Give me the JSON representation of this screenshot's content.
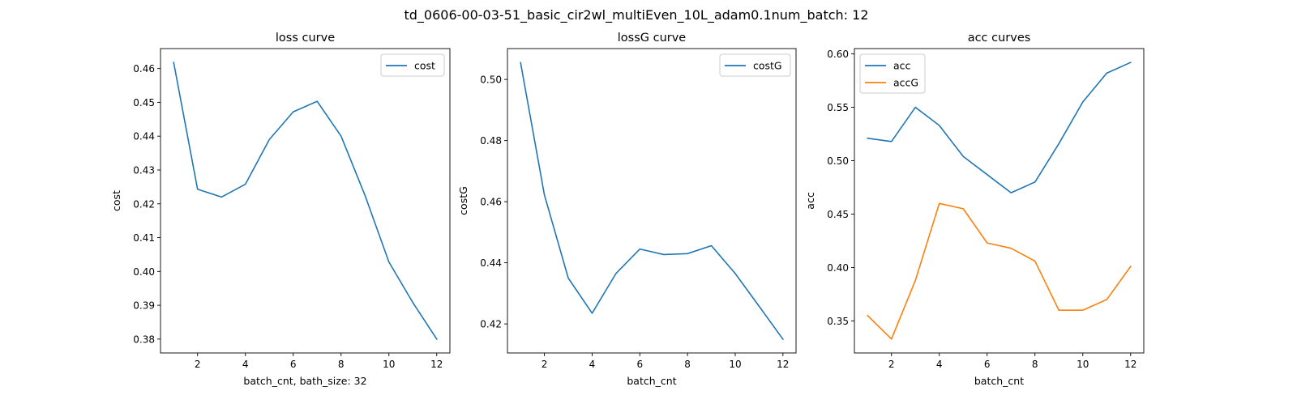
{
  "figure": {
    "suptitle": "td_0606-00-03-51_basic_cir2wl_multiEven_10L_adam0.1num_batch: 12"
  },
  "chart_data": [
    {
      "type": "line",
      "title": "loss curve",
      "xlabel": "batch_cnt, bath_size: 32",
      "ylabel": "cost",
      "x": [
        1,
        2,
        3,
        4,
        5,
        6,
        7,
        8,
        9,
        10,
        11,
        12
      ],
      "series": [
        {
          "name": "cost",
          "color": "#1f77b4",
          "values": [
            0.4618,
            0.4243,
            0.422,
            0.4258,
            0.439,
            0.4472,
            0.4503,
            0.44,
            0.4225,
            0.4028,
            0.3908,
            0.38
          ]
        }
      ],
      "xlim": [
        0.45,
        12.55
      ],
      "ylim": [
        0.3759,
        0.4659
      ],
      "xticks": [
        2,
        4,
        6,
        8,
        10,
        12
      ],
      "yticks": [
        0.38,
        0.39,
        0.4,
        0.41,
        0.42,
        0.43,
        0.44,
        0.45,
        0.46
      ],
      "ytick_labels": [
        "0.38",
        "0.39",
        "0.40",
        "0.41",
        "0.42",
        "0.43",
        "0.44",
        "0.45",
        "0.46"
      ],
      "legend": "upper right",
      "grid": false
    },
    {
      "type": "line",
      "title": "lossG curve",
      "xlabel": "batch_cnt",
      "ylabel": "costG",
      "x": [
        1,
        2,
        3,
        4,
        5,
        6,
        7,
        8,
        9,
        10,
        11,
        12
      ],
      "series": [
        {
          "name": "costG",
          "color": "#1f77b4",
          "values": [
            0.5055,
            0.4622,
            0.435,
            0.4235,
            0.4365,
            0.4445,
            0.4427,
            0.443,
            0.4456,
            0.4365,
            0.4258,
            0.415
          ]
        }
      ],
      "xlim": [
        0.45,
        12.55
      ],
      "ylim": [
        0.4105,
        0.5101
      ],
      "xticks": [
        2,
        4,
        6,
        8,
        10,
        12
      ],
      "yticks": [
        0.42,
        0.44,
        0.46,
        0.48,
        0.5
      ],
      "ytick_labels": [
        "0.42",
        "0.44",
        "0.46",
        "0.48",
        "0.50"
      ],
      "legend": "upper right",
      "grid": false
    },
    {
      "type": "line",
      "title": "acc curves",
      "xlabel": "batch_cnt",
      "ylabel": "acc",
      "x": [
        1,
        2,
        3,
        4,
        5,
        6,
        7,
        8,
        9,
        10,
        11,
        12
      ],
      "series": [
        {
          "name": "acc",
          "color": "#1f77b4",
          "values": [
            0.521,
            0.518,
            0.55,
            0.533,
            0.504,
            0.487,
            0.47,
            0.48,
            0.516,
            0.555,
            0.582,
            0.592
          ]
        },
        {
          "name": "accG",
          "color": "#ff7f0e",
          "values": [
            0.355,
            0.333,
            0.388,
            0.46,
            0.455,
            0.423,
            0.418,
            0.406,
            0.36,
            0.36,
            0.37,
            0.401
          ]
        }
      ],
      "xlim": [
        0.45,
        12.55
      ],
      "ylim": [
        0.32,
        0.605
      ],
      "xticks": [
        2,
        4,
        6,
        8,
        10,
        12
      ],
      "yticks": [
        0.35,
        0.4,
        0.45,
        0.5,
        0.55,
        0.6
      ],
      "ytick_labels": [
        "0.35",
        "0.40",
        "0.45",
        "0.50",
        "0.55",
        "0.60"
      ],
      "legend": "upper left",
      "grid": false
    }
  ]
}
